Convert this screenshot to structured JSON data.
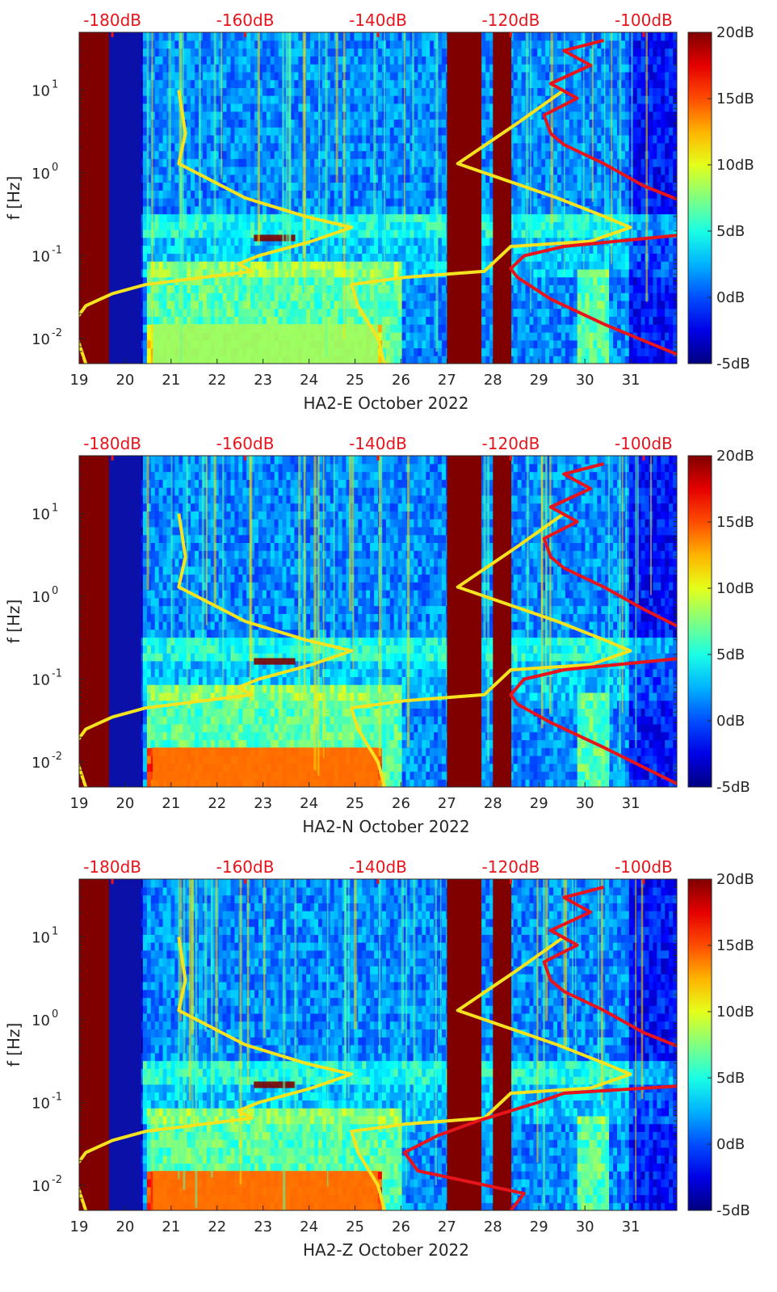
{
  "chart_data": [
    {
      "type": "heatmap",
      "title": "",
      "xlabel": "HA2-E October 2022",
      "ylabel": "f [Hz]",
      "x_ticks": [
        "19",
        "20",
        "21",
        "22",
        "23",
        "24",
        "25",
        "26",
        "27",
        "28",
        "29",
        "30",
        "31"
      ],
      "xlim": [
        19,
        32
      ],
      "y_ticks": [
        {
          "value": 0.01,
          "label": "10^-2"
        },
        {
          "value": 0.1,
          "label": "10^-1"
        },
        {
          "value": 1,
          "label": "10^0"
        },
        {
          "value": 10,
          "label": "10^1"
        }
      ],
      "ylim": [
        0.005,
        50
      ],
      "yscale": "log",
      "top_axis_ticks": [
        "-180dB",
        "-160dB",
        "-140dB",
        "-120dB",
        "-100dB"
      ],
      "top_axis_range_dB": [
        -185,
        -95
      ],
      "colorbar": {
        "ticks": [
          "20dB",
          "15dB",
          "10dB",
          "5dB",
          "0dB",
          "-5dB"
        ],
        "range_dB": [
          -5,
          20
        ],
        "colormap": "jet"
      },
      "gaps": [
        {
          "x": [
            19.0,
            19.65
          ],
          "state": "saturated-dark-red"
        },
        {
          "x": [
            27.0,
            27.75
          ],
          "state": "saturated-dark-red"
        },
        {
          "x": [
            28.0,
            28.4
          ],
          "state": "saturated-dark-red"
        }
      ],
      "features": [
        {
          "x": [
            22.8,
            23.7
          ],
          "f": [
            0.15,
            0.18
          ],
          "level_dB": 20
        },
        {
          "x": [
            20.6,
            25.5
          ],
          "f": [
            0.005,
            0.015
          ],
          "level_dB": 8
        }
      ],
      "series": [
        {
          "color": "#f5e31f",
          "points": [
            [
              -170,
              10
            ],
            [
              -169,
              3
            ],
            [
              -170,
              1.3
            ],
            [
              -160,
              0.5
            ],
            [
              -151,
              0.3
            ],
            [
              -144,
              0.22
            ],
            [
              -150,
              0.15
            ],
            [
              -158,
              0.1
            ],
            [
              -161,
              0.08
            ],
            [
              -159,
              0.065
            ],
            [
              -175,
              0.045
            ],
            [
              -180,
              0.035
            ],
            [
              -184,
              0.025
            ],
            [
              -186,
              0.015
            ],
            [
              -184,
              0.005
            ]
          ]
        },
        {
          "color": "#f5e31f",
          "points": [
            [
              -112,
              10
            ],
            [
              -119,
              4
            ],
            [
              -128,
              1.3
            ],
            [
              -113,
              0.5
            ],
            [
              -106,
              0.3
            ],
            [
              -102,
              0.22
            ],
            [
              -108,
              0.15
            ],
            [
              -120,
              0.13
            ],
            [
              -124,
              0.065
            ],
            [
              -136,
              0.055
            ],
            [
              -144,
              0.045
            ],
            [
              -143,
              0.025
            ],
            [
              -140,
              0.01
            ],
            [
              -139,
              0.005
            ]
          ]
        },
        {
          "color": "#e8141b",
          "points": [
            [
              -106,
              40
            ],
            [
              -112,
              30
            ],
            [
              -108,
              20
            ],
            [
              -114,
              12
            ],
            [
              -110,
              8
            ],
            [
              -115,
              5
            ],
            [
              -114,
              3
            ],
            [
              -112,
              2.2
            ],
            [
              -106,
              1.3
            ],
            [
              -100,
              0.7
            ],
            [
              -94,
              0.45
            ]
          ]
        },
        {
          "color": "#e8141b",
          "points": [
            [
              -94,
              0.18
            ],
            [
              -112,
              0.13
            ],
            [
              -118,
              0.1
            ],
            [
              -120,
              0.07
            ],
            [
              -119,
              0.055
            ],
            [
              -114,
              0.03
            ],
            [
              -106,
              0.015
            ],
            [
              -94,
              0.006
            ]
          ]
        }
      ]
    },
    {
      "type": "heatmap",
      "title": "",
      "xlabel": "HA2-N October 2022",
      "ylabel": "f [Hz]",
      "x_ticks": [
        "19",
        "20",
        "21",
        "22",
        "23",
        "24",
        "25",
        "26",
        "27",
        "28",
        "29",
        "30",
        "31"
      ],
      "xlim": [
        19,
        32
      ],
      "y_ticks": [
        {
          "value": 0.01,
          "label": "10^-2"
        },
        {
          "value": 0.1,
          "label": "10^-1"
        },
        {
          "value": 1,
          "label": "10^0"
        },
        {
          "value": 10,
          "label": "10^1"
        }
      ],
      "ylim": [
        0.005,
        50
      ],
      "yscale": "log",
      "top_axis_ticks": [
        "-180dB",
        "-160dB",
        "-140dB",
        "-120dB",
        "-100dB"
      ],
      "top_axis_range_dB": [
        -185,
        -95
      ],
      "colorbar": {
        "ticks": [
          "20dB",
          "15dB",
          "10dB",
          "5dB",
          "0dB",
          "-5dB"
        ],
        "range_dB": [
          -5,
          20
        ],
        "colormap": "jet"
      },
      "gaps": [
        {
          "x": [
            19.0,
            19.65
          ],
          "state": "saturated-dark-red"
        },
        {
          "x": [
            27.0,
            27.75
          ],
          "state": "saturated-dark-red"
        },
        {
          "x": [
            28.0,
            28.4
          ],
          "state": "saturated-dark-red"
        }
      ],
      "features": [
        {
          "x": [
            22.8,
            23.7
          ],
          "f": [
            0.15,
            0.18
          ],
          "level_dB": 20
        },
        {
          "x": [
            20.6,
            25.5
          ],
          "f": [
            0.005,
            0.015
          ],
          "level_dB": 14
        }
      ],
      "series": [
        {
          "color": "#f5e31f",
          "points": [
            [
              -170,
              10
            ],
            [
              -169,
              3
            ],
            [
              -170,
              1.3
            ],
            [
              -160,
              0.5
            ],
            [
              -151,
              0.3
            ],
            [
              -144,
              0.22
            ],
            [
              -150,
              0.15
            ],
            [
              -158,
              0.1
            ],
            [
              -161,
              0.08
            ],
            [
              -159,
              0.065
            ],
            [
              -175,
              0.045
            ],
            [
              -180,
              0.035
            ],
            [
              -184,
              0.025
            ],
            [
              -186,
              0.015
            ],
            [
              -184,
              0.005
            ]
          ]
        },
        {
          "color": "#f5e31f",
          "points": [
            [
              -112,
              10
            ],
            [
              -119,
              4
            ],
            [
              -128,
              1.3
            ],
            [
              -113,
              0.5
            ],
            [
              -106,
              0.3
            ],
            [
              -102,
              0.22
            ],
            [
              -108,
              0.15
            ],
            [
              -120,
              0.13
            ],
            [
              -124,
              0.065
            ],
            [
              -136,
              0.055
            ],
            [
              -144,
              0.045
            ],
            [
              -143,
              0.025
            ],
            [
              -140,
              0.01
            ],
            [
              -139,
              0.005
            ]
          ]
        },
        {
          "color": "#e8141b",
          "points": [
            [
              -106,
              40
            ],
            [
              -112,
              30
            ],
            [
              -108,
              20
            ],
            [
              -114,
              12
            ],
            [
              -110,
              8
            ],
            [
              -115,
              5
            ],
            [
              -114,
              3
            ],
            [
              -112,
              2.2
            ],
            [
              -106,
              1.3
            ],
            [
              -100,
              0.7
            ],
            [
              -94,
              0.4
            ]
          ]
        },
        {
          "color": "#e8141b",
          "points": [
            [
              -94,
              0.18
            ],
            [
              -112,
              0.13
            ],
            [
              -118,
              0.1
            ],
            [
              -120,
              0.065
            ],
            [
              -119,
              0.05
            ],
            [
              -114,
              0.03
            ],
            [
              -106,
              0.015
            ],
            [
              -94,
              0.005
            ]
          ]
        }
      ]
    },
    {
      "type": "heatmap",
      "title": "",
      "xlabel": "HA2-Z October 2022",
      "ylabel": "f [Hz]",
      "x_ticks": [
        "19",
        "20",
        "21",
        "22",
        "23",
        "24",
        "25",
        "26",
        "27",
        "28",
        "29",
        "30",
        "31"
      ],
      "xlim": [
        19,
        32
      ],
      "y_ticks": [
        {
          "value": 0.01,
          "label": "10^-2"
        },
        {
          "value": 0.1,
          "label": "10^-1"
        },
        {
          "value": 1,
          "label": "10^0"
        },
        {
          "value": 10,
          "label": "10^1"
        }
      ],
      "ylim": [
        0.005,
        50
      ],
      "yscale": "log",
      "top_axis_ticks": [
        "-180dB",
        "-160dB",
        "-140dB",
        "-120dB",
        "-100dB"
      ],
      "top_axis_range_dB": [
        -185,
        -95
      ],
      "colorbar": {
        "ticks": [
          "20dB",
          "15dB",
          "10dB",
          "5dB",
          "0dB",
          "-5dB"
        ],
        "range_dB": [
          -5,
          20
        ],
        "colormap": "jet"
      },
      "gaps": [
        {
          "x": [
            19.0,
            19.65
          ],
          "state": "saturated-dark-red"
        },
        {
          "x": [
            27.0,
            27.75
          ],
          "state": "saturated-dark-red"
        },
        {
          "x": [
            28.0,
            28.4
          ],
          "state": "saturated-dark-red"
        }
      ],
      "features": [
        {
          "x": [
            22.8,
            23.7
          ],
          "f": [
            0.15,
            0.18
          ],
          "level_dB": 20
        },
        {
          "x": [
            20.6,
            25.5
          ],
          "f": [
            0.005,
            0.015
          ],
          "level_dB": 14
        }
      ],
      "series": [
        {
          "color": "#f5e31f",
          "points": [
            [
              -170,
              10
            ],
            [
              -169,
              3
            ],
            [
              -170,
              1.3
            ],
            [
              -160,
              0.5
            ],
            [
              -151,
              0.3
            ],
            [
              -144,
              0.22
            ],
            [
              -150,
              0.15
            ],
            [
              -158,
              0.1
            ],
            [
              -161,
              0.08
            ],
            [
              -159,
              0.065
            ],
            [
              -175,
              0.045
            ],
            [
              -180,
              0.035
            ],
            [
              -184,
              0.025
            ],
            [
              -186,
              0.015
            ],
            [
              -184,
              0.005
            ]
          ]
        },
        {
          "color": "#f5e31f",
          "points": [
            [
              -112,
              10
            ],
            [
              -119,
              4
            ],
            [
              -128,
              1.3
            ],
            [
              -113,
              0.5
            ],
            [
              -106,
              0.3
            ],
            [
              -102,
              0.22
            ],
            [
              -108,
              0.15
            ],
            [
              -120,
              0.13
            ],
            [
              -124,
              0.065
            ],
            [
              -136,
              0.055
            ],
            [
              -144,
              0.045
            ],
            [
              -143,
              0.025
            ],
            [
              -140,
              0.01
            ],
            [
              -139,
              0.005
            ]
          ]
        },
        {
          "color": "#e8141b",
          "points": [
            [
              -106,
              40
            ],
            [
              -112,
              30
            ],
            [
              -108,
              20
            ],
            [
              -114,
              12
            ],
            [
              -110,
              8
            ],
            [
              -115,
              5
            ],
            [
              -114,
              3
            ],
            [
              -112,
              2.2
            ],
            [
              -106,
              1.3
            ],
            [
              -100,
              0.7
            ],
            [
              -94,
              0.45
            ]
          ]
        },
        {
          "color": "#e8141b",
          "points": [
            [
              -94,
              0.16
            ],
            [
              -112,
              0.13
            ],
            [
              -116,
              0.1
            ],
            [
              -125,
              0.06
            ],
            [
              -131,
              0.04
            ],
            [
              -136,
              0.025
            ],
            [
              -134,
              0.015
            ],
            [
              -118,
              0.008
            ],
            [
              -120,
              0.005
            ]
          ]
        }
      ]
    }
  ]
}
